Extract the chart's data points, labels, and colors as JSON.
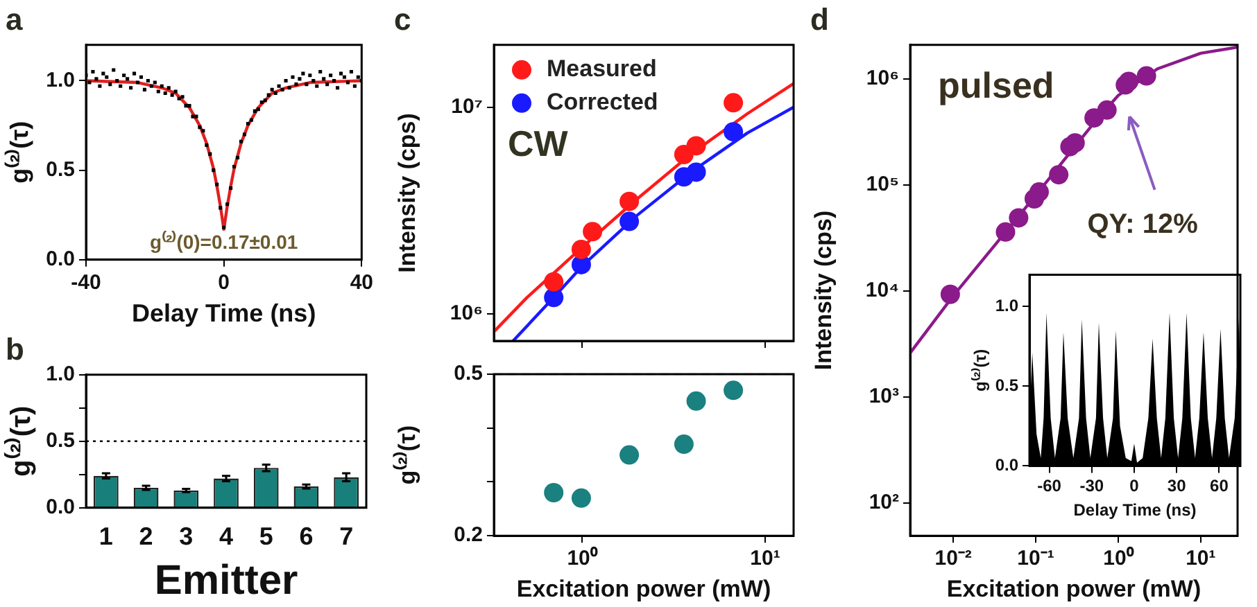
{
  "chart_data": [
    {
      "type": "scatter",
      "title": "a",
      "xlabel": "Delay Time (ns)",
      "ylabel": "g⁽²⁾(τ)",
      "xlim": [
        -40,
        40
      ],
      "xticks": [
        -40,
        0,
        40
      ],
      "ylim": [
        0,
        1.2
      ],
      "yticks": [
        {
          "value": 0,
          "label": "0.0"
        },
        {
          "value": 0.5,
          "label": "0.5"
        },
        {
          "value": 1,
          "label": "1.0"
        }
      ],
      "annotations": [
        "g⁽²⁾(0)=0.17±0.01"
      ],
      "series": [
        {
          "type": "scatter",
          "marker": "square",
          "color": "#000000",
          "x": [
            -40,
            -39,
            -38,
            -37,
            -36,
            -35,
            -34,
            -33,
            -32,
            -31,
            -30,
            -29,
            -28,
            -27,
            -26,
            -25,
            -24,
            -23,
            -22,
            -21,
            -20,
            -19,
            -18,
            -17,
            -16,
            -15,
            -14,
            -13,
            -12,
            -11,
            -10,
            -9,
            -8,
            -7,
            -6,
            -5,
            -4,
            -3,
            -2,
            -1,
            0,
            1,
            2,
            3,
            4,
            5,
            6,
            7,
            8,
            9,
            10,
            11,
            12,
            13,
            14,
            15,
            16,
            17,
            18,
            19,
            20,
            21,
            22,
            23,
            24,
            25,
            26,
            27,
            28,
            29,
            30,
            31,
            32,
            33,
            34,
            35,
            36,
            37,
            38,
            39,
            40
          ],
          "values": [
            1.03,
            0.99,
            1.05,
            1.01,
            0.97,
            1.04,
            1.02,
            0.98,
            1.06,
            1.0,
            0.97,
            1.03,
            1.01,
            0.96,
            1.04,
            0.99,
            1.02,
            0.95,
            1.0,
            0.97,
            0.99,
            0.94,
            0.97,
            0.93,
            0.96,
            0.92,
            0.94,
            0.9,
            0.91,
            0.86,
            0.86,
            0.8,
            0.8,
            0.74,
            0.72,
            0.64,
            0.59,
            0.5,
            0.42,
            0.29,
            0.18,
            0.31,
            0.4,
            0.52,
            0.57,
            0.66,
            0.7,
            0.76,
            0.78,
            0.83,
            0.84,
            0.88,
            0.89,
            0.92,
            0.95,
            0.93,
            0.97,
            0.95,
            1.0,
            0.96,
            1.02,
            0.98,
            1.01,
            1.04,
            0.98,
            1.03,
            1.0,
            0.97,
            1.05,
            1.01,
            0.98,
            1.03,
            1.0,
            0.96,
            1.04,
            1.02,
            0.99,
            1.05,
            0.97,
            1.02,
            1.0
          ]
        },
        {
          "type": "line",
          "color": "#e02020",
          "x": [
            -40,
            -25,
            -18,
            -14,
            -10,
            -7,
            -5,
            -3,
            -2,
            -1,
            0,
            1,
            2,
            3,
            5,
            7,
            10,
            14,
            18,
            25,
            40
          ],
          "values": [
            1.0,
            0.99,
            0.96,
            0.93,
            0.85,
            0.75,
            0.65,
            0.51,
            0.41,
            0.3,
            0.17,
            0.3,
            0.41,
            0.51,
            0.65,
            0.75,
            0.85,
            0.93,
            0.96,
            0.99,
            1.0
          ]
        }
      ]
    },
    {
      "type": "bar",
      "title": "b",
      "xlabel": "Emitter",
      "ylabel": "g⁽²⁾(τ)",
      "categories": [
        "1",
        "2",
        "3",
        "4",
        "5",
        "6",
        "7"
      ],
      "values": [
        0.24,
        0.15,
        0.13,
        0.22,
        0.3,
        0.16,
        0.23
      ],
      "errors": [
        0.02,
        0.015,
        0.012,
        0.02,
        0.025,
        0.015,
        0.03
      ],
      "color": "#187f7a",
      "ylim": [
        0,
        1
      ],
      "yticks": [
        {
          "value": 0,
          "label": "0.0"
        },
        {
          "value": 0.25,
          "label": null
        },
        {
          "value": 0.5,
          "label": "0.5"
        },
        {
          "value": 0.75,
          "label": null
        },
        {
          "value": 1,
          "label": "1.0"
        }
      ],
      "ref_lines": [
        {
          "axis": "y",
          "value": 0.5,
          "line_style": "dotted",
          "color": "#000000"
        }
      ]
    },
    {
      "type": "scatter",
      "title": "c",
      "ylabel": "Intensity (cps)",
      "log": "xy",
      "xlim": [
        0.33,
        14.3
      ],
      "xticks": [
        {
          "value": 1,
          "label": null
        },
        {
          "value": 10,
          "label": null
        }
      ],
      "ylim": [
        740000,
        20000000
      ],
      "yticks": [
        {
          "value": 1000000,
          "label": "10⁶"
        },
        {
          "value": 10000000,
          "label": "10⁷"
        }
      ],
      "tick_labels": "y",
      "legend": "top left",
      "annotations": [
        "CW"
      ],
      "series": [
        {
          "name": "Measured",
          "type": "scatter",
          "marker": "circle",
          "color": "#ff1a1a",
          "x": [
            0.7,
            0.99,
            1.14,
            1.81,
            3.6,
            4.2,
            6.7
          ],
          "values": [
            1430000,
            2050000,
            2500000,
            3500000,
            5900000,
            6500000,
            10500000
          ]
        },
        {
          "name": "Corrected",
          "type": "scatter",
          "marker": "circle",
          "color": "#1a1aff",
          "x": [
            0.7,
            0.99,
            1.81,
            3.6,
            4.2,
            6.7
          ],
          "values": [
            1200000,
            1730000,
            2800000,
            4600000,
            4850000,
            7600000
          ]
        },
        {
          "type": "line",
          "color": "#ff1a1a",
          "x": [
            0.33,
            0.5,
            1,
            2,
            4,
            8,
            14.3
          ],
          "values": [
            820000,
            1200000,
            2100000,
            3600000,
            6000000,
            9300000,
            13000000
          ]
        },
        {
          "type": "line",
          "color": "#1a1aff",
          "x": [
            0.42,
            0.7,
            1,
            2,
            4,
            8,
            14.3
          ],
          "values": [
            740000,
            1200000,
            1700000,
            3000000,
            4900000,
            7500000,
            10000000
          ]
        }
      ]
    },
    {
      "type": "scatter",
      "ylabel": "g⁽²⁾(τ)",
      "xlabel": "Excitation power (mW)",
      "log": "x",
      "xlim": [
        0.33,
        14.3
      ],
      "xticks": [
        {
          "value": 1,
          "label": "10⁰"
        },
        {
          "value": 10,
          "label": "10¹"
        }
      ],
      "ylim": [
        0.2,
        0.5
      ],
      "yticks": [
        {
          "value": 0.2,
          "label": "0.2"
        },
        {
          "value": 0.3,
          "label": null
        },
        {
          "value": 0.4,
          "label": null
        },
        {
          "value": 0.5,
          "label": "0.5"
        }
      ],
      "ref_lines": [
        {
          "axis": "y",
          "value": 0.5,
          "line_style": "dashed",
          "color": "#aaaaaa"
        }
      ],
      "series": [
        {
          "type": "scatter",
          "marker": "circle",
          "color": "#1a8080",
          "x": [
            0.7,
            0.99,
            1.81,
            3.6,
            4.2,
            6.7
          ],
          "values": [
            0.28,
            0.27,
            0.35,
            0.37,
            0.45,
            0.47
          ]
        }
      ]
    },
    {
      "type": "scatter",
      "title": "d",
      "xlabel": "Excitation power (mW)",
      "ylabel": "Intensity (cps)",
      "log": "xy",
      "xlim": [
        0.003,
        28
      ],
      "xticks": [
        {
          "value": 0.01,
          "label": "10⁻²"
        },
        {
          "value": 0.1,
          "label": "10⁻¹"
        },
        {
          "value": 1,
          "label": "10⁰"
        },
        {
          "value": 10,
          "label": "10¹"
        }
      ],
      "ylim": [
        49,
        2100000
      ],
      "yticks": [
        {
          "value": 100,
          "label": "10²"
        },
        {
          "value": 1000,
          "label": "10³"
        },
        {
          "value": 10000,
          "label": "10⁴"
        },
        {
          "value": 100000,
          "label": "10⁵"
        },
        {
          "value": 1000000,
          "label": "10⁶"
        }
      ],
      "annotations": [
        "pulsed",
        "QY: 12%"
      ],
      "series": [
        {
          "type": "line",
          "color": "#8b1a8b",
          "x": [
            0.003,
            0.01,
            0.1,
            0.5,
            1,
            3,
            10,
            28
          ],
          "values": [
            2600,
            9000,
            80000,
            380000,
            700000,
            1250000,
            1750000,
            2000000
          ]
        },
        {
          "type": "scatter",
          "marker": "circle",
          "color": "#8b1a8b",
          "x": [
            0.0092,
            0.043,
            0.062,
            0.096,
            0.11,
            0.19,
            0.26,
            0.3,
            0.51,
            0.73,
            1.22,
            1.34,
            2.2
          ],
          "values": [
            9300,
            36000,
            49000,
            74000,
            86000,
            125000,
            230000,
            250000,
            430000,
            510000,
            880000,
            950000,
            1070000
          ]
        }
      ]
    },
    {
      "type": "area",
      "xlabel": "Delay Time (ns)",
      "ylabel": "g⁽²⁾(τ)",
      "xlim": [
        -74,
        75
      ],
      "xticks": [
        -60,
        -30,
        0,
        30,
        60
      ],
      "ylim": [
        0,
        1.2
      ],
      "yticks": [
        {
          "value": 0,
          "label": "0.0"
        },
        {
          "value": 0.5,
          "label": "0.5"
        },
        {
          "value": 1,
          "label": "1.0"
        }
      ],
      "color": "#000000",
      "x": [
        -74,
        -72,
        -69,
        -66,
        -64,
        -62,
        -59,
        -56,
        -52,
        -50,
        -47,
        -43,
        -39,
        -37,
        -34,
        -31,
        -27,
        -25,
        -22,
        -19,
        -15,
        -13,
        -10,
        -6,
        -2,
        0,
        2,
        6,
        10,
        13,
        16,
        19,
        22,
        25,
        28,
        31,
        34,
        37,
        40,
        43,
        46,
        49,
        52,
        55,
        58,
        61,
        64,
        67,
        71,
        74,
        75
      ],
      "values": [
        0.3,
        0.71,
        0.2,
        0.05,
        0.3,
        0.96,
        0.3,
        0.05,
        0.3,
        0.84,
        0.3,
        0.05,
        0.3,
        0.92,
        0.3,
        0.05,
        0.3,
        0.9,
        0.3,
        0.05,
        0.3,
        0.85,
        0.25,
        0.05,
        0.03,
        0.14,
        0.02,
        0.05,
        0.3,
        0.8,
        0.3,
        0.05,
        0.3,
        0.96,
        0.3,
        0.05,
        0.3,
        0.96,
        0.3,
        0.05,
        0.3,
        0.84,
        0.3,
        0.05,
        0.3,
        0.86,
        0.3,
        0.05,
        0.3,
        0.93,
        0.5
      ]
    }
  ]
}
